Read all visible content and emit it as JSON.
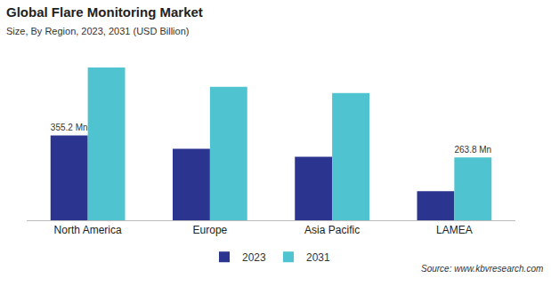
{
  "chart_data": {
    "type": "bar",
    "title": "Global Flare Monitoring Market",
    "subtitle": "Size, By Region, 2023, 2031 (USD Billion)",
    "categories": [
      "North America",
      "Europe",
      "Asia Pacific",
      "LAMEA"
    ],
    "series": [
      {
        "name": "2023",
        "color": "#2b3590",
        "values": [
          355.2,
          300,
          266,
          122
        ],
        "value_labels": [
          "355.2 Mn",
          null,
          null,
          null
        ]
      },
      {
        "name": "2031",
        "color": "#4fc3cf",
        "values": [
          640,
          559,
          533,
          263.8
        ],
        "value_labels": [
          null,
          null,
          null,
          "263.8 Mn"
        ]
      }
    ],
    "ylim": [
      0,
      700
    ],
    "grid": false,
    "legend": "bottom",
    "data_labels": true,
    "tick_labels": "x",
    "annotations": [
      "Source: www.kbvresearch.com"
    ]
  }
}
